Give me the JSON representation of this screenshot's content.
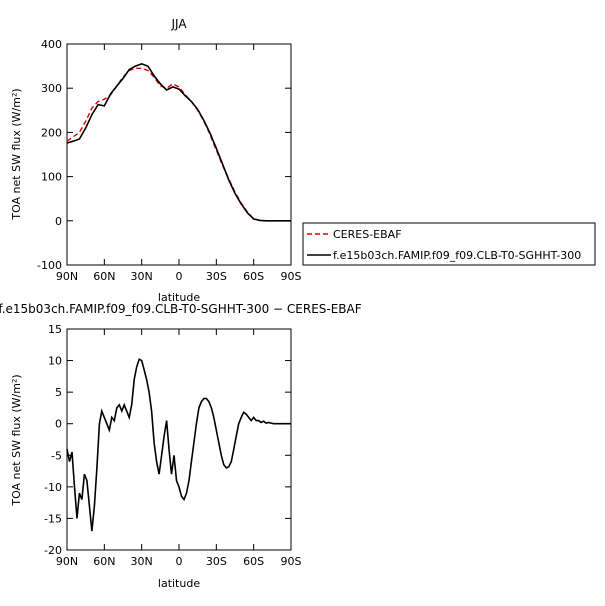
{
  "chart_data": [
    {
      "type": "line",
      "title": "JJA",
      "xlabel": "latitude",
      "ylabel": "TOA net SW flux (W/m²)",
      "ylim": [
        -100,
        400
      ],
      "yticks": [
        -100,
        0,
        100,
        200,
        300,
        400
      ],
      "xlim": [
        90,
        -90
      ],
      "xticks": [
        90,
        60,
        30,
        0,
        -30,
        -60,
        -90
      ],
      "xtick_labels": [
        "90N",
        "60N",
        "30N",
        "0",
        "30S",
        "60S",
        "90S"
      ],
      "legend_position": "right",
      "series": [
        {
          "name": "CERES-EBAF",
          "color": "#e00000",
          "style": "dashed",
          "x": [
            90,
            85,
            80,
            75,
            70,
            65,
            60,
            55,
            50,
            45,
            40,
            35,
            30,
            25,
            20,
            15,
            10,
            5,
            0,
            -5,
            -10,
            -15,
            -20,
            -25,
            -30,
            -35,
            -40,
            -45,
            -50,
            -55,
            -60,
            -65,
            -70,
            -75,
            -80,
            -85,
            -90
          ],
          "y": [
            180,
            190,
            200,
            225,
            255,
            270,
            275,
            285,
            305,
            325,
            340,
            345,
            345,
            340,
            325,
            305,
            300,
            310,
            303,
            285,
            270,
            250,
            225,
            195,
            160,
            125,
            95,
            65,
            40,
            20,
            5,
            1,
            0,
            0,
            0,
            0,
            0
          ]
        },
        {
          "name": "f.e15b03ch.FAMIP.f09_f09.CLB-T0-SGHHT-300",
          "color": "#000000",
          "style": "solid",
          "x": [
            90,
            85,
            80,
            75,
            70,
            65,
            60,
            55,
            50,
            45,
            40,
            35,
            30,
            25,
            20,
            15,
            10,
            5,
            0,
            -5,
            -10,
            -15,
            -20,
            -25,
            -30,
            -35,
            -40,
            -45,
            -50,
            -55,
            -60,
            -65,
            -70,
            -75,
            -80,
            -85,
            -90
          ],
          "y": [
            176,
            180,
            185,
            210,
            240,
            263,
            260,
            287,
            305,
            322,
            342,
            350,
            355,
            350,
            328,
            310,
            296,
            303,
            298,
            283,
            270,
            252,
            227,
            198,
            164,
            128,
            92,
            62,
            38,
            18,
            4,
            1,
            0,
            0,
            0,
            0,
            0
          ]
        }
      ]
    },
    {
      "type": "line",
      "title": "f.e15b03ch.FAMIP.f09_f09.CLB-T0-SGHHT-300 − CERES-EBAF",
      "xlabel": "latitude",
      "ylabel": "TOA net SW flux (W/m²)",
      "ylim": [
        -20,
        15
      ],
      "yticks": [
        -20,
        -15,
        -10,
        -5,
        0,
        5,
        10,
        15
      ],
      "xlim": [
        90,
        -90
      ],
      "xticks": [
        90,
        60,
        30,
        0,
        -30,
        -60,
        -90
      ],
      "xtick_labels": [
        "90N",
        "60N",
        "30N",
        "0",
        "30S",
        "60S",
        "90S"
      ],
      "series": [
        {
          "color": "#000000",
          "style": "solid",
          "x": [
            90,
            88,
            86,
            84,
            82,
            80,
            78,
            76,
            74,
            72,
            70,
            68,
            66,
            64,
            62,
            60,
            58,
            56,
            54,
            52,
            50,
            48,
            46,
            44,
            42,
            40,
            38,
            36,
            34,
            32,
            30,
            28,
            26,
            24,
            22,
            20,
            18,
            16,
            14,
            12,
            10,
            8,
            6,
            4,
            2,
            0,
            -2,
            -4,
            -6,
            -8,
            -10,
            -12,
            -14,
            -16,
            -18,
            -20,
            -22,
            -24,
            -26,
            -28,
            -30,
            -32,
            -34,
            -36,
            -38,
            -40,
            -42,
            -44,
            -46,
            -48,
            -50,
            -52,
            -54,
            -56,
            -58,
            -60,
            -62,
            -64,
            -66,
            -68,
            -70,
            -72,
            -74,
            -76,
            -78,
            -80,
            -85,
            -90
          ],
          "y": [
            -4,
            -6,
            -4.5,
            -10,
            -15,
            -11,
            -12,
            -8,
            -9,
            -13,
            -17,
            -13,
            -7,
            0,
            2,
            1,
            0,
            -1,
            1,
            0.5,
            2.5,
            3,
            2,
            3,
            2,
            1,
            3,
            7,
            9,
            10.2,
            10,
            8.5,
            7,
            5,
            2,
            -3,
            -6,
            -8,
            -5,
            -2,
            0.5,
            -4,
            -8,
            -5,
            -9,
            -10,
            -11.5,
            -12,
            -11,
            -9,
            -6,
            -3,
            0,
            2.5,
            3.5,
            4,
            4,
            3.5,
            2.5,
            1,
            -1,
            -3,
            -5,
            -6.5,
            -7,
            -6.8,
            -6,
            -4,
            -2,
            0,
            1,
            1.8,
            1.5,
            1,
            0.5,
            1,
            0.5,
            0.5,
            0.2,
            0.4,
            0.1,
            0.2,
            0.1,
            0,
            0,
            0,
            0,
            0
          ]
        }
      ]
    }
  ]
}
